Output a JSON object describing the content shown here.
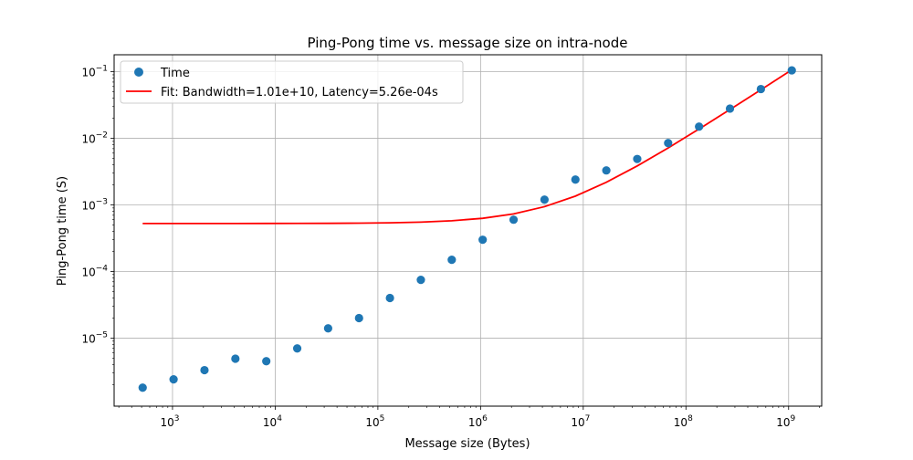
{
  "chart_data": {
    "type": "scatter",
    "title": "Ping-Pong time vs. message size on intra-node",
    "xlabel": "Message size (Bytes)",
    "ylabel": "Ping-Pong time (S)",
    "xscale": "log",
    "yscale": "log",
    "xlim": [
      270,
      2100000000
    ],
    "ylim": [
      9.5e-07,
      0.18
    ],
    "grid": true,
    "legend_position": "top-left",
    "x_ticks": [
      {
        "value": 1000,
        "base": "10",
        "exp": "3"
      },
      {
        "value": 10000,
        "base": "10",
        "exp": "4"
      },
      {
        "value": 100000,
        "base": "10",
        "exp": "5"
      },
      {
        "value": 1000000,
        "base": "10",
        "exp": "6"
      },
      {
        "value": 10000000,
        "base": "10",
        "exp": "7"
      },
      {
        "value": 100000000,
        "base": "10",
        "exp": "8"
      },
      {
        "value": 1000000000,
        "base": "10",
        "exp": "9"
      }
    ],
    "y_ticks": [
      {
        "value": 1e-05,
        "base": "10",
        "exp": "−5"
      },
      {
        "value": 0.0001,
        "base": "10",
        "exp": "−4"
      },
      {
        "value": 0.001,
        "base": "10",
        "exp": "−3"
      },
      {
        "value": 0.01,
        "base": "10",
        "exp": "−2"
      },
      {
        "value": 0.1,
        "base": "10",
        "exp": "−1"
      }
    ],
    "series": [
      {
        "name": "Time",
        "kind": "scatter",
        "color": "#1f77b4",
        "x": [
          512,
          1024,
          2048,
          4096,
          8192,
          16384,
          32768,
          65536,
          131072,
          262144,
          524288,
          1048576,
          2097152,
          4194304,
          8388608,
          16777216,
          33554432,
          67108864,
          134217728,
          268435456,
          536870912,
          1073741824
        ],
        "y": [
          1.8e-06,
          2.4e-06,
          3.3e-06,
          4.9e-06,
          4.5e-06,
          7e-06,
          1.4e-05,
          2e-05,
          4e-05,
          7.5e-05,
          0.00015,
          0.0003,
          0.0006,
          0.0012,
          0.0024,
          0.0033,
          0.0049,
          0.0085,
          0.015,
          0.028,
          0.055,
          0.105
        ]
      },
      {
        "name": "Fit: Bandwidth=1.01e+10, Latency=5.26e-04s",
        "kind": "line",
        "color": "#ff0000",
        "bandwidth": 10100000000,
        "latency": 0.000526
      }
    ]
  }
}
